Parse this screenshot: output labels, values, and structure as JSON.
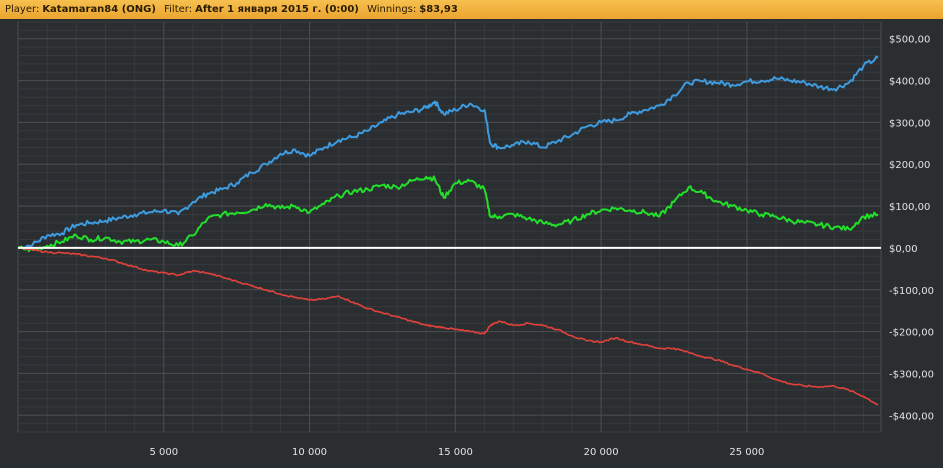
{
  "header": {
    "player_label": "Player:",
    "player_value": "Katamaran84 (ONG)",
    "filter_label": "Filter:",
    "filter_value": "After 1 января 2015 г. (0:00)",
    "winnings_label": "Winnings:",
    "winnings_value": "$83,93"
  },
  "colors": {
    "background": "#2b2e31",
    "grid_major": "#4a4e53",
    "grid_minor": "#363a3e",
    "zero_line": "#ffffff",
    "blue": "#3d9be0",
    "green": "#22e02a",
    "red": "#e2423a",
    "header_bg": "#f0aa36"
  },
  "chart_data": {
    "type": "line",
    "title": "",
    "xlabel": "",
    "ylabel": "",
    "xlim": [
      0,
      29600
    ],
    "ylim": [
      -440,
      540
    ],
    "x_ticks": [
      5000,
      10000,
      15000,
      20000,
      25000
    ],
    "x_tick_labels": [
      "5 000",
      "10 000",
      "15 000",
      "20 000",
      "25 000"
    ],
    "y_ticks": [
      500,
      400,
      300,
      200,
      100,
      0,
      -100,
      -200,
      -300,
      -400
    ],
    "y_tick_labels": [
      "$500,00",
      "$400,00",
      "$300,00",
      "$200,00",
      "$100,00",
      "$0,00",
      "-$100,00",
      "-$200,00",
      "-$300,00",
      "-$400,00"
    ],
    "zero_line": true,
    "grid": true,
    "legend": "none",
    "series": [
      {
        "color": "#3d9be0",
        "x": [
          0,
          500,
          1000,
          1500,
          2000,
          2500,
          3000,
          3500,
          4000,
          4500,
          5000,
          5500,
          6000,
          6500,
          7000,
          7500,
          8000,
          8500,
          9000,
          9500,
          10000,
          10500,
          11000,
          11500,
          12000,
          12500,
          13000,
          13500,
          14000,
          14300,
          14600,
          15000,
          15500,
          16000,
          16200,
          16500,
          17000,
          17500,
          18000,
          18500,
          19000,
          19500,
          20000,
          20500,
          21000,
          21500,
          22000,
          22500,
          23000,
          23500,
          24000,
          24500,
          25000,
          25500,
          26000,
          26500,
          27000,
          27500,
          28000,
          28500,
          29000,
          29500
        ],
        "y": [
          0,
          8,
          30,
          35,
          55,
          60,
          65,
          72,
          80,
          85,
          90,
          80,
          110,
          130,
          140,
          155,
          180,
          200,
          225,
          235,
          220,
          240,
          258,
          265,
          280,
          300,
          318,
          325,
          335,
          350,
          320,
          330,
          345,
          330,
          250,
          240,
          245,
          255,
          240,
          255,
          270,
          290,
          300,
          305,
          320,
          330,
          340,
          365,
          395,
          398,
          395,
          390,
          398,
          400,
          405,
          400,
          395,
          385,
          380,
          395,
          435,
          455
        ]
      },
      {
        "color": "#22e02a",
        "x": [
          0,
          500,
          1000,
          1500,
          2000,
          2500,
          3000,
          3500,
          4000,
          4500,
          5000,
          5500,
          6000,
          6500,
          7000,
          7500,
          8000,
          8500,
          9000,
          9500,
          10000,
          10500,
          11000,
          11500,
          12000,
          12500,
          13000,
          13500,
          14000,
          14300,
          14600,
          15000,
          15500,
          16000,
          16200,
          16500,
          17000,
          17500,
          18000,
          18500,
          19000,
          19500,
          20000,
          20500,
          21000,
          21500,
          22000,
          22500,
          23000,
          23500,
          24000,
          24500,
          25000,
          25500,
          26000,
          26500,
          27000,
          27500,
          28000,
          28500,
          29000,
          29500
        ],
        "y": [
          0,
          -5,
          5,
          15,
          30,
          20,
          25,
          15,
          15,
          20,
          15,
          5,
          30,
          70,
          80,
          85,
          90,
          105,
          95,
          100,
          85,
          105,
          125,
          135,
          140,
          150,
          145,
          160,
          170,
          165,
          120,
          155,
          160,
          140,
          75,
          75,
          80,
          70,
          60,
          55,
          65,
          80,
          90,
          95,
          90,
          85,
          75,
          110,
          145,
          130,
          110,
          100,
          90,
          80,
          75,
          65,
          60,
          55,
          50,
          45,
          75,
          80
        ]
      },
      {
        "color": "#e2423a",
        "x": [
          0,
          500,
          1000,
          1500,
          2000,
          2500,
          3000,
          3500,
          4000,
          4500,
          5000,
          5500,
          6000,
          6500,
          7000,
          7500,
          8000,
          8500,
          9000,
          9500,
          10000,
          10500,
          11000,
          11500,
          12000,
          12500,
          13000,
          13500,
          14000,
          14300,
          14600,
          15000,
          15500,
          16000,
          16200,
          16500,
          17000,
          17500,
          18000,
          18500,
          19000,
          19500,
          20000,
          20500,
          21000,
          21500,
          22000,
          22500,
          23000,
          23500,
          24000,
          24500,
          25000,
          25500,
          26000,
          26500,
          27000,
          27500,
          28000,
          28500,
          29000,
          29500
        ],
        "y": [
          0,
          -5,
          -10,
          -12,
          -15,
          -20,
          -25,
          -35,
          -45,
          -55,
          -60,
          -65,
          -55,
          -60,
          -70,
          -80,
          -90,
          -100,
          -110,
          -118,
          -125,
          -122,
          -115,
          -130,
          -145,
          -155,
          -165,
          -175,
          -185,
          -188,
          -190,
          -195,
          -200,
          -205,
          -185,
          -175,
          -185,
          -180,
          -185,
          -195,
          -210,
          -222,
          -225,
          -215,
          -225,
          -232,
          -240,
          -240,
          -250,
          -260,
          -268,
          -280,
          -290,
          -300,
          -315,
          -325,
          -330,
          -332,
          -330,
          -340,
          -355,
          -375
        ]
      }
    ]
  }
}
